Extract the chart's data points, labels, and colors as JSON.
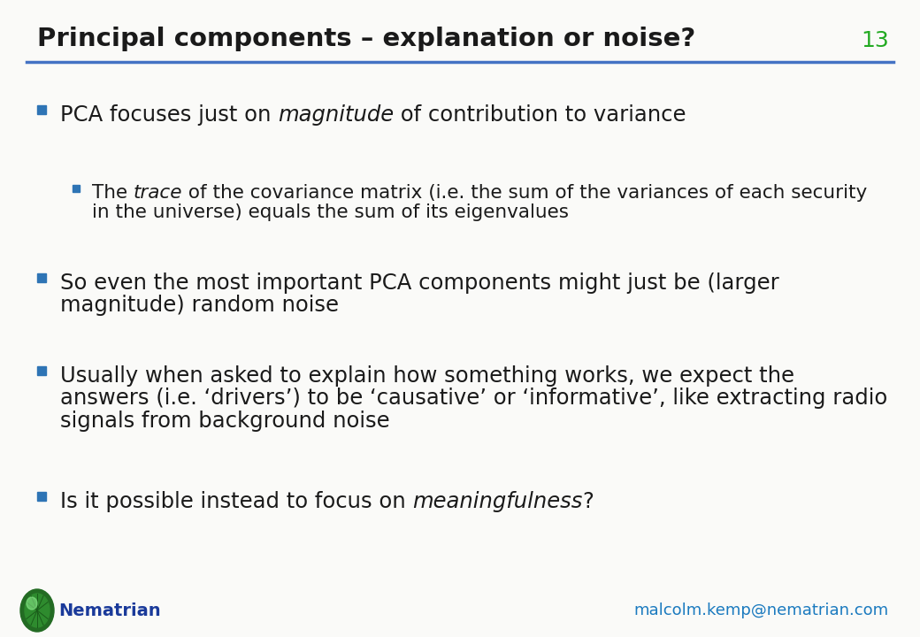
{
  "title": "Principal components – explanation or noise?",
  "slide_number": "13",
  "background_color": "#FAFAF8",
  "title_color": "#1A1A1A",
  "slide_number_color": "#22AA22",
  "title_line_color": "#4472C4",
  "bullet_color": "#2E74B5",
  "sub_bullet_color": "#2E74B5",
  "text_color": "#1A1A1A",
  "nematrian_color": "#1A3A9A",
  "email_color": "#1A7ABF",
  "bullets": [
    {
      "level": 0,
      "text_parts": [
        {
          "text": "PCA focuses just on ",
          "italic": false
        },
        {
          "text": "magnitude",
          "italic": true
        },
        {
          "text": " of contribution to variance",
          "italic": false
        }
      ]
    },
    {
      "level": 1,
      "text_parts": [
        {
          "text": "The ",
          "italic": false
        },
        {
          "text": "trace",
          "italic": true
        },
        {
          "text": " of the covariance matrix (i.e. the sum of the variances of each security\nin the universe) equals the sum of its eigenvalues",
          "italic": false
        }
      ]
    },
    {
      "level": 0,
      "text_parts": [
        {
          "text": "So even the most important PCA components might just be (larger\nmagnitude) random noise",
          "italic": false
        }
      ]
    },
    {
      "level": 0,
      "text_parts": [
        {
          "text": "Usually when asked to explain how something works, we expect the\nanswers (i.e. ‘drivers’) to be ‘causative’ or ‘informative’, like extracting radio\nsignals from background noise",
          "italic": false
        }
      ]
    },
    {
      "level": 0,
      "text_parts": [
        {
          "text": "Is it possible instead to focus on ",
          "italic": false
        },
        {
          "text": "meaningfulness",
          "italic": true
        },
        {
          "text": "?",
          "italic": false
        }
      ]
    }
  ],
  "footer_logo_text": "Nematrian",
  "footer_email": "malcolm.kemp@nematrian.com"
}
